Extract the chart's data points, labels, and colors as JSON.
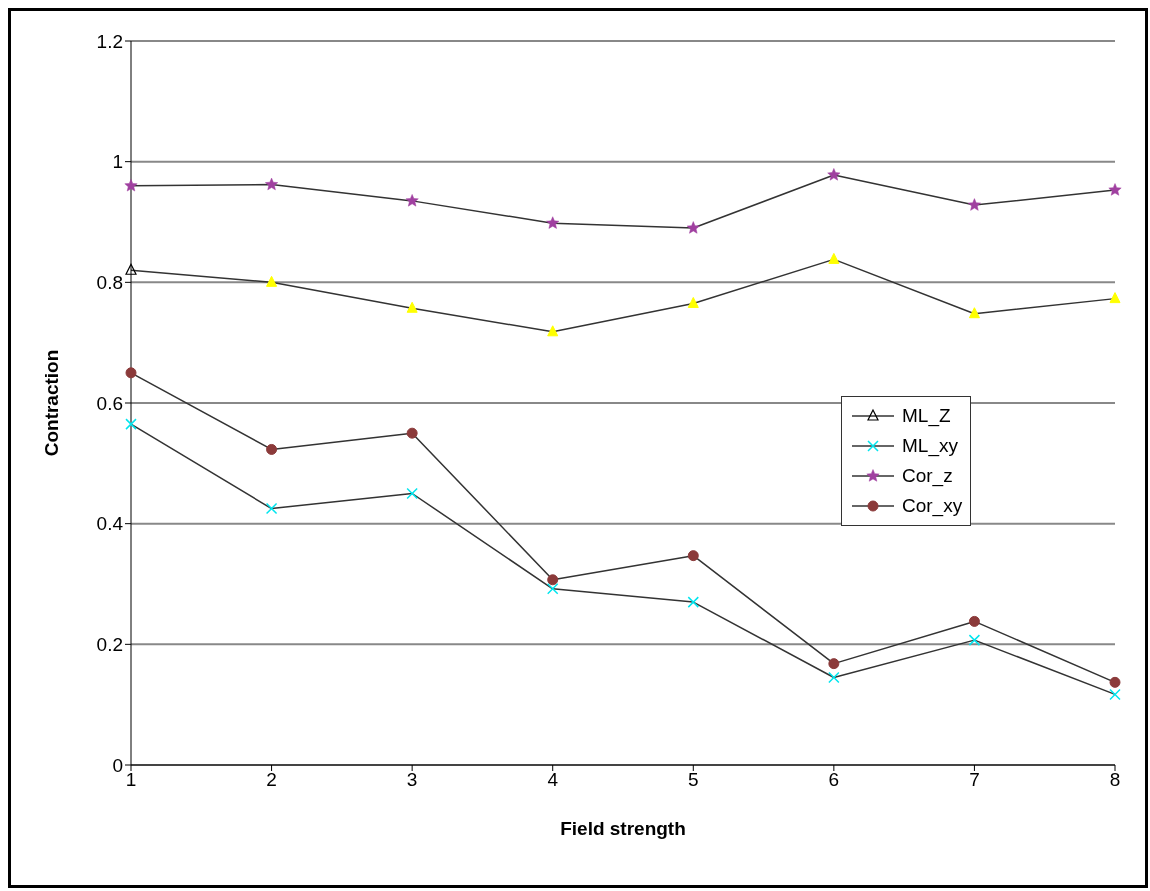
{
  "chart_data": {
    "type": "line",
    "xlabel": "Field strength",
    "ylabel": "Contraction",
    "categories": [
      "1",
      "2",
      "3",
      "4",
      "5",
      "6",
      "7",
      "8"
    ],
    "series": [
      {
        "name": "ML_Z",
        "color": "#ffff00",
        "marker": "triangle",
        "values": [
          0.82,
          0.8,
          0.757,
          0.718,
          0.765,
          0.838,
          0.748,
          0.773
        ]
      },
      {
        "name": "ML_xy",
        "color": "#00e5ee",
        "marker": "cross",
        "values": [
          0.565,
          0.425,
          0.45,
          0.292,
          0.27,
          0.145,
          0.207,
          0.117
        ]
      },
      {
        "name": "Cor_z",
        "color": "#a040a0",
        "marker": "star",
        "values": [
          0.96,
          0.962,
          0.935,
          0.898,
          0.89,
          0.978,
          0.928,
          0.953
        ]
      },
      {
        "name": "Cor_xy",
        "color": "#8b3a3a",
        "marker": "circle",
        "values": [
          0.65,
          0.523,
          0.55,
          0.307,
          0.347,
          0.168,
          0.238,
          0.137
        ]
      }
    ],
    "ylim": [
      0,
      1.2
    ],
    "yticks": [
      0,
      0.2,
      0.4,
      0.6,
      0.8,
      1,
      1.2
    ],
    "grid": "y",
    "legend": "right",
    "line_style": "solid"
  }
}
